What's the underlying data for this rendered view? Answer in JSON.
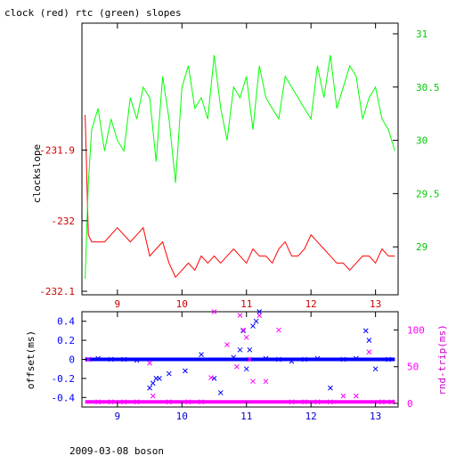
{
  "chart_data": [
    {
      "type": "line",
      "title": "clock (red) rtc (green) slopes",
      "ylabel_left": "clockslope",
      "x": {
        "range": [
          8.45,
          13.35
        ],
        "ticks": [
          "9",
          "10",
          "11",
          "12",
          "13"
        ],
        "tick_values": [
          9,
          10,
          11,
          12,
          13
        ]
      },
      "y_left": {
        "range": [
          -232.105,
          -231.72
        ],
        "ticks": [
          "-231.9",
          "-232",
          "-232.1"
        ],
        "tick_values": [
          -231.9,
          -232.0,
          -232.1
        ],
        "color": "#cc0000"
      },
      "y_right": {
        "range": [
          28.55,
          31.1
        ],
        "ticks": [
          "31",
          "30.5",
          "30",
          "29.5",
          "29"
        ],
        "tick_values": [
          31,
          30.5,
          30,
          29.5,
          29
        ],
        "color": "#00cc00"
      },
      "series": [
        {
          "color": "#ff0000",
          "axis": "left",
          "x": [
            8.5,
            8.55,
            8.6,
            8.7,
            8.8,
            8.9,
            9.0,
            9.1,
            9.2,
            9.3,
            9.4,
            9.5,
            9.6,
            9.7,
            9.8,
            9.9,
            10.0,
            10.1,
            10.2,
            10.3,
            10.4,
            10.5,
            10.6,
            10.7,
            10.8,
            10.9,
            11.0,
            11.1,
            11.2,
            11.3,
            11.4,
            11.5,
            11.6,
            11.7,
            11.8,
            11.9,
            12.0,
            12.1,
            12.2,
            12.3,
            12.4,
            12.5,
            12.6,
            12.7,
            12.8,
            12.9,
            13.0,
            13.1,
            13.2,
            13.3
          ],
          "y": [
            -231.85,
            -232.02,
            -232.03,
            -232.03,
            -232.03,
            -232.02,
            -232.01,
            -232.02,
            -232.03,
            -232.02,
            -232.01,
            -232.05,
            -232.04,
            -232.03,
            -232.06,
            -232.08,
            -232.07,
            -232.06,
            -232.07,
            -232.05,
            -232.06,
            -232.05,
            -232.06,
            -232.05,
            -232.04,
            -232.05,
            -232.06,
            -232.04,
            -232.05,
            -232.05,
            -232.06,
            -232.04,
            -232.03,
            -232.05,
            -232.05,
            -232.04,
            -232.02,
            -232.03,
            -232.04,
            -232.05,
            -232.06,
            -232.06,
            -232.07,
            -232.06,
            -232.05,
            -232.05,
            -232.06,
            -232.04,
            -232.05,
            -232.05
          ]
        },
        {
          "color": "#00ff00",
          "axis": "right",
          "x": [
            8.5,
            8.55,
            8.6,
            8.7,
            8.8,
            8.9,
            9.0,
            9.1,
            9.2,
            9.3,
            9.4,
            9.5,
            9.6,
            9.7,
            9.8,
            9.9,
            10.0,
            10.1,
            10.2,
            10.3,
            10.4,
            10.5,
            10.6,
            10.7,
            10.8,
            10.9,
            11.0,
            11.1,
            11.2,
            11.3,
            11.4,
            11.5,
            11.6,
            11.7,
            11.8,
            11.9,
            12.0,
            12.1,
            12.2,
            12.3,
            12.4,
            12.5,
            12.6,
            12.7,
            12.8,
            12.9,
            13.0,
            13.1,
            13.2,
            13.3
          ],
          "y": [
            28.7,
            29.6,
            30.1,
            30.3,
            29.9,
            30.2,
            30.0,
            29.9,
            30.4,
            30.2,
            30.5,
            30.4,
            29.8,
            30.6,
            30.2,
            29.6,
            30.5,
            30.7,
            30.3,
            30.4,
            30.2,
            30.8,
            30.3,
            30.0,
            30.5,
            30.4,
            30.6,
            30.1,
            30.7,
            30.4,
            30.3,
            30.2,
            30.6,
            30.5,
            30.4,
            30.3,
            30.2,
            30.7,
            30.4,
            30.8,
            30.3,
            30.5,
            30.7,
            30.6,
            30.2,
            30.4,
            30.5,
            30.2,
            30.1,
            29.9
          ]
        }
      ]
    },
    {
      "type": "scatter",
      "ylabel_left": "offset(ms)",
      "ylabel_right": "rnd-trip(ms)",
      "x": {
        "range": [
          8.45,
          13.35
        ],
        "ticks": [
          "9",
          "10",
          "11",
          "12",
          "13"
        ],
        "tick_values": [
          9,
          10,
          11,
          12,
          13
        ]
      },
      "y_left": {
        "range": [
          -0.5,
          0.5
        ],
        "ticks": [
          "0.4",
          "0.2",
          "0",
          "-0.2",
          "-0.4"
        ],
        "tick_values": [
          0.4,
          0.2,
          0,
          -0.2,
          -0.4
        ],
        "color": "#0000ff"
      },
      "y_right": {
        "range": [
          -5,
          125
        ],
        "ticks": [
          "100",
          "50",
          "0"
        ],
        "tick_values": [
          100,
          50,
          0
        ],
        "color": "#ff00ff"
      },
      "series": [
        {
          "color": "#0000ff",
          "axis": "left",
          "marker": "x",
          "x": [
            8.55,
            8.7,
            8.9,
            9.1,
            9.3,
            9.5,
            9.55,
            9.6,
            9.65,
            9.8,
            10.05,
            10.3,
            10.5,
            10.6,
            10.8,
            10.9,
            10.95,
            11.0,
            11.05,
            11.1,
            11.15,
            11.2,
            11.3,
            11.5,
            11.7,
            11.9,
            12.1,
            12.3,
            12.5,
            12.7,
            12.85,
            12.9,
            13.0,
            13.2
          ],
          "y": [
            0.0,
            0.01,
            0.0,
            0.0,
            -0.01,
            -0.3,
            -0.25,
            -0.2,
            -0.2,
            -0.15,
            -0.12,
            0.05,
            -0.2,
            -0.35,
            0.02,
            0.1,
            0.3,
            -0.1,
            0.1,
            0.35,
            0.4,
            0.5,
            0.01,
            0.0,
            -0.02,
            0.0,
            0.01,
            -0.3,
            0.0,
            0.01,
            0.3,
            0.2,
            -0.1,
            0.0
          ]
        },
        {
          "color": "#ff00ff",
          "axis": "right",
          "marker": "x",
          "x": [
            8.55,
            8.7,
            8.9,
            9.1,
            9.3,
            9.5,
            9.55,
            9.8,
            10.1,
            10.3,
            10.45,
            10.5,
            10.7,
            10.85,
            10.9,
            10.95,
            11.0,
            11.05,
            11.1,
            11.2,
            11.3,
            11.5,
            11.7,
            11.9,
            12.1,
            12.3,
            12.5,
            12.7,
            12.9,
            13.1,
            13.25
          ],
          "y": [
            60,
            2,
            2,
            2,
            2,
            55,
            10,
            2,
            2,
            2,
            35,
            125,
            80,
            50,
            120,
            100,
            90,
            60,
            30,
            120,
            30,
            100,
            2,
            2,
            2,
            2,
            10,
            10,
            70,
            2,
            2
          ]
        }
      ]
    }
  ],
  "footer": {
    "caption": "2009-03-08 boson"
  }
}
